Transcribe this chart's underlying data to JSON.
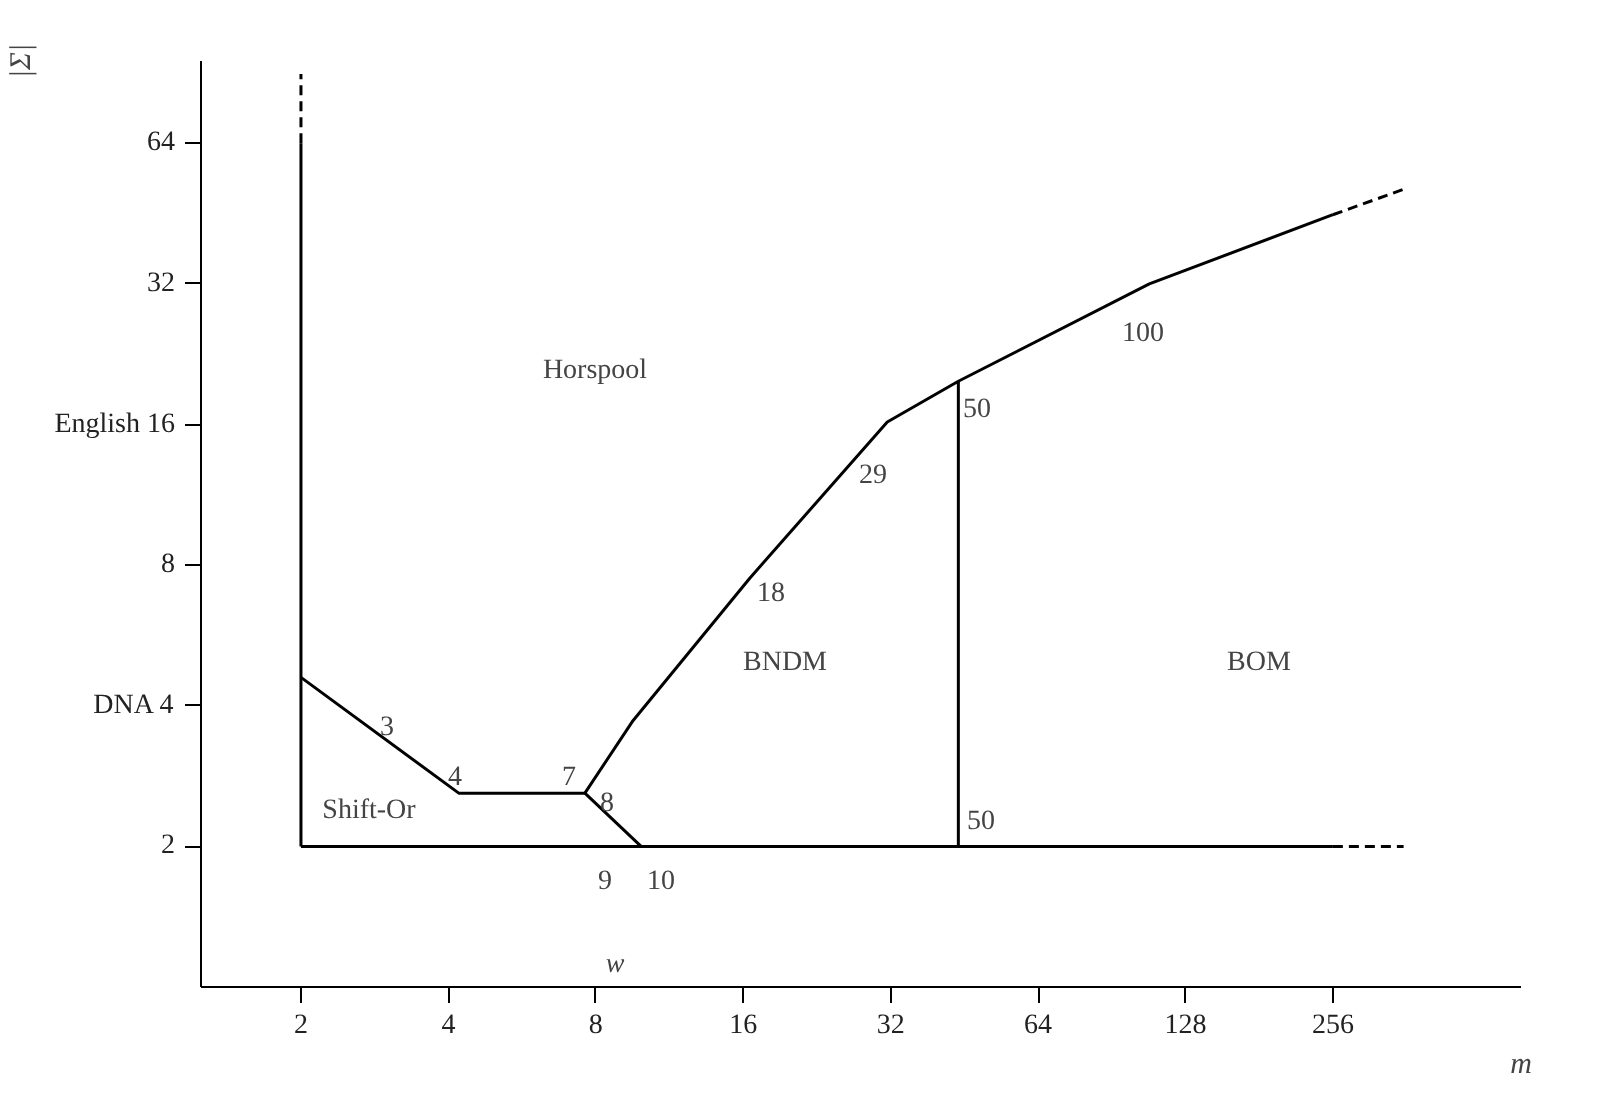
{
  "chart_data": {
    "type": "line",
    "log": "xy",
    "xlabel": "m",
    "ylabel": "|Σ|",
    "xlim": [
      1.25,
      620
    ],
    "ylim": [
      1,
      96
    ],
    "xticks": [
      2,
      4,
      8,
      16,
      32,
      64,
      128,
      256
    ],
    "yticks": [
      2,
      {
        "value": 4,
        "label": "DNA 4"
      },
      8,
      {
        "value": 16,
        "label": "English 16"
      },
      32,
      64
    ],
    "series": [
      {
        "color": "#000000",
        "x": [
          2,
          2
        ],
        "values": [
          2,
          64
        ]
      },
      {
        "color": "#000000",
        "x": [
          2,
          2
        ],
        "values": [
          64,
          90
        ],
        "line_style": "dashed"
      },
      {
        "color": "#000000",
        "x": [
          2,
          256
        ],
        "values": [
          2,
          2
        ]
      },
      {
        "color": "#000000",
        "x": [
          256,
          357
        ],
        "values": [
          2,
          2
        ],
        "line_style": "dashed"
      },
      {
        "color": "#000000",
        "x": [
          2,
          4.2,
          7.6,
          9.9
        ],
        "values": [
          4.6,
          2.6,
          2.6,
          2
        ]
      },
      {
        "color": "#000000",
        "x": [
          7.6,
          9.5,
          16.5,
          31.5,
          44,
          108,
          256
        ],
        "values": [
          2.6,
          3.7,
          7.5,
          16.2,
          19.8,
          32,
          45
        ]
      },
      {
        "color": "#000000",
        "x": [
          256,
          357
        ],
        "values": [
          45,
          51
        ],
        "line_style": "dashed"
      },
      {
        "color": "#000000",
        "x": [
          44,
          44
        ],
        "values": [
          2,
          19.8
        ]
      }
    ],
    "annotations": [
      "Horspool",
      "BNDM",
      "BOM",
      "Shift-Or",
      "3",
      "4",
      "7",
      "8",
      "9",
      "10",
      "18",
      "29",
      "50",
      "100",
      "50",
      "w"
    ]
  }
}
